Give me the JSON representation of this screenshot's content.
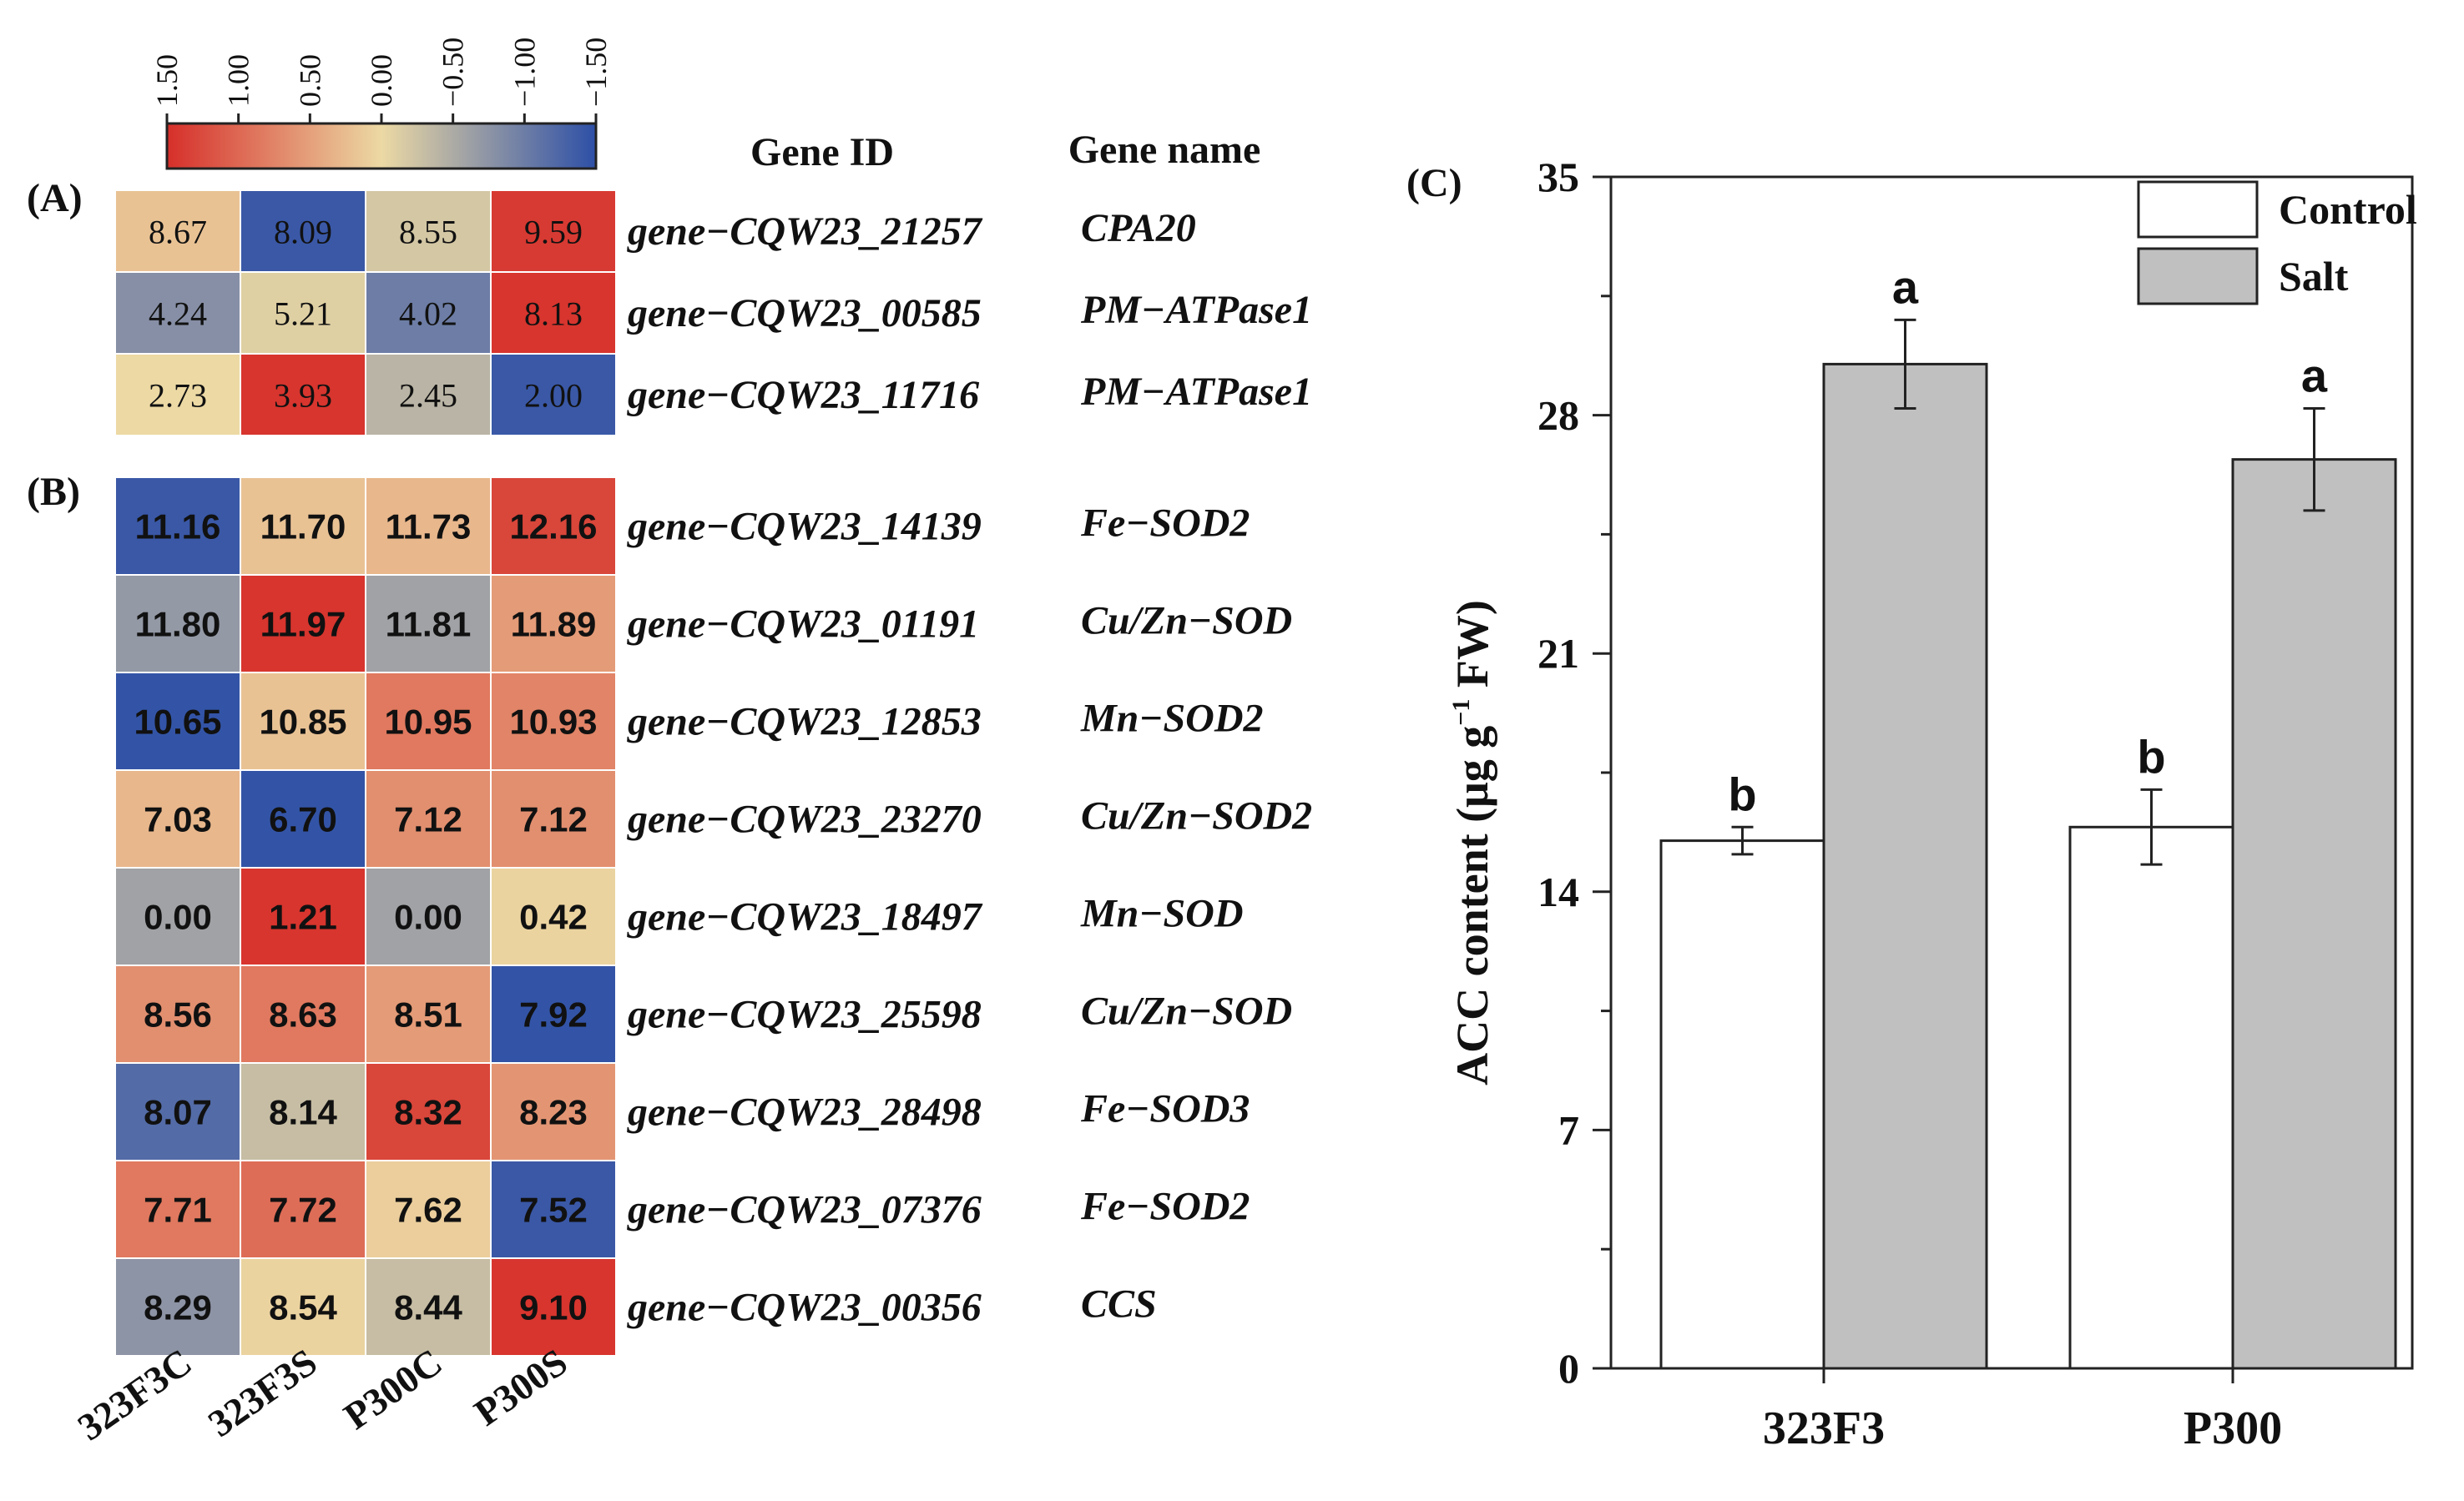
{
  "chart_data": [
    {
      "type": "heatmap",
      "panel_label": "(A)",
      "column_header_gene_id": "Gene ID",
      "column_header_gene_name": "Gene name",
      "columns": [
        "323F3C",
        "323F3S",
        "P300C",
        "P300S"
      ],
      "scale": {
        "ticks": [
          "1.50",
          "1.00",
          "0.50",
          "0.00",
          "−0.50",
          "−1.00",
          "−1.50"
        ],
        "tick_values": [
          1.5,
          1.0,
          0.5,
          0.0,
          -0.5,
          -1.0,
          -1.5
        ],
        "colors": [
          "#d62f2a",
          "#ecd9a4",
          "#2d4fa6"
        ]
      },
      "rows": [
        {
          "gene_id": "gene−CQW23_21257",
          "gene_name": "CPA20",
          "values": [
            "8.67",
            "8.09",
            "8.55",
            "9.59"
          ],
          "z": [
            0.2,
            -1.4,
            -0.2,
            1.4
          ]
        },
        {
          "gene_id": "gene−CQW23_00585",
          "gene_name": "PM−ATPase1",
          "values": [
            "4.24",
            "5.21",
            "4.02",
            "8.13"
          ],
          "z": [
            -0.8,
            -0.1,
            -1.0,
            1.45
          ]
        },
        {
          "gene_id": "gene−CQW23_11716",
          "gene_name": "PM−ATPase1",
          "values": [
            "2.73",
            "3.93",
            "2.45",
            "2.00"
          ],
          "z": [
            0.0,
            1.45,
            -0.4,
            -1.4
          ]
        }
      ]
    },
    {
      "type": "heatmap",
      "panel_label": "(B)",
      "columns": [
        "323F3C",
        "323F3S",
        "P300C",
        "P300S"
      ],
      "rows": [
        {
          "gene_id": "gene−CQW23_14139",
          "gene_name": "Fe−SOD2",
          "values": [
            "11.16",
            "11.70",
            "11.73",
            "12.16"
          ],
          "z": [
            -1.4,
            0.2,
            0.3,
            1.3
          ]
        },
        {
          "gene_id": "gene−CQW23_01191",
          "gene_name": "Cu/Zn−SOD",
          "values": [
            "11.80",
            "11.97",
            "11.81",
            "11.89"
          ],
          "z": [
            -0.7,
            1.45,
            -0.6,
            0.55
          ]
        },
        {
          "gene_id": "gene−CQW23_12853",
          "gene_name": "Mn−SOD2",
          "values": [
            "10.65",
            "10.85",
            "10.95",
            "10.93"
          ],
          "z": [
            -1.45,
            0.2,
            0.85,
            0.75
          ]
        },
        {
          "gene_id": "gene−CQW23_23270",
          "gene_name": "Cu/Zn−SOD2",
          "values": [
            "7.03",
            "6.70",
            "7.12",
            "7.12"
          ],
          "z": [
            0.3,
            -1.45,
            0.65,
            0.65
          ]
        },
        {
          "gene_id": "gene−CQW23_18497",
          "gene_name": "Mn−SOD",
          "values": [
            "0.00",
            "1.21",
            "0.00",
            "0.42"
          ],
          "z": [
            -0.6,
            1.45,
            -0.6,
            0.05
          ]
        },
        {
          "gene_id": "gene−CQW23_25598",
          "gene_name": "Cu/Zn−SOD",
          "values": [
            "8.56",
            "8.63",
            "8.51",
            "7.92"
          ],
          "z": [
            0.65,
            0.85,
            0.55,
            -1.45
          ]
        },
        {
          "gene_id": "gene−CQW23_28498",
          "gene_name": "Fe−SOD3",
          "values": [
            "8.07",
            "8.14",
            "8.32",
            "8.23"
          ],
          "z": [
            -1.2,
            -0.3,
            1.3,
            0.6
          ]
        },
        {
          "gene_id": "gene−CQW23_07376",
          "gene_name": "Fe−SOD2",
          "values": [
            "7.71",
            "7.72",
            "7.62",
            "7.52"
          ],
          "z": [
            0.85,
            0.95,
            0.1,
            -1.4
          ]
        },
        {
          "gene_id": "gene−CQW23_00356",
          "gene_name": "CCS",
          "values": [
            "8.29",
            "8.54",
            "8.44",
            "9.10"
          ],
          "z": [
            -0.75,
            0.05,
            -0.3,
            1.45
          ]
        }
      ]
    },
    {
      "type": "bar",
      "panel_label": "(C)",
      "categories": [
        "323F3",
        "P300"
      ],
      "ylabel_main": "ACC content (μg g",
      "ylabel_sup": "−1",
      "ylabel_end": " FW)",
      "ylim": [
        0,
        35
      ],
      "yticks": [
        0,
        7,
        14,
        21,
        28,
        35
      ],
      "legend_position": "top-right",
      "series": [
        {
          "name": "Control",
          "color": "#ffffff",
          "values": [
            15.5,
            15.9
          ],
          "errors": [
            0.4,
            1.1
          ],
          "letters": [
            "b",
            "b"
          ]
        },
        {
          "name": "Salt",
          "color": "#c0c0c0",
          "values": [
            29.5,
            26.7
          ],
          "errors": [
            1.3,
            1.5
          ],
          "letters": [
            "a",
            "a"
          ]
        }
      ]
    }
  ]
}
